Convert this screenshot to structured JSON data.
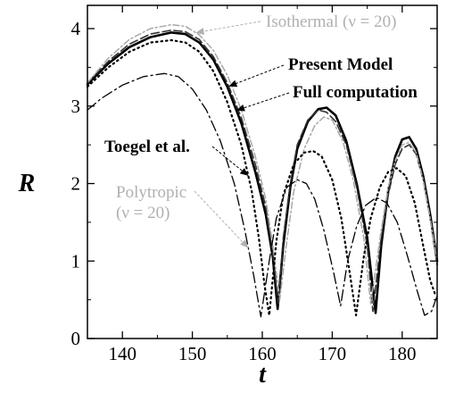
{
  "chart_data": {
    "type": "line",
    "xlabel": "t",
    "ylabel": "R",
    "xlim": [
      135,
      185
    ],
    "ylim": [
      0,
      4.3
    ],
    "xticks": [
      140,
      150,
      160,
      170,
      180
    ],
    "yticks": [
      0,
      1,
      2,
      3,
      4
    ],
    "grid": false,
    "series": [
      {
        "key": "full",
        "color": "#000000",
        "dash": "",
        "width": 2.6,
        "x": [
          135,
          138,
          141,
          144,
          147,
          149,
          151,
          153,
          155,
          157,
          159,
          160.5,
          161.5,
          162.2,
          163,
          164,
          165,
          166.5,
          168,
          169.2,
          170.5,
          172,
          173.5,
          175,
          176.2,
          177,
          178,
          179,
          180,
          181,
          182,
          183,
          184,
          185
        ],
        "y": [
          3.28,
          3.55,
          3.76,
          3.89,
          3.95,
          3.93,
          3.82,
          3.6,
          3.25,
          2.78,
          2.15,
          1.6,
          1.05,
          0.38,
          1.2,
          1.95,
          2.45,
          2.8,
          2.96,
          2.98,
          2.88,
          2.55,
          2.0,
          1.3,
          0.33,
          1.2,
          1.9,
          2.35,
          2.57,
          2.6,
          2.45,
          2.1,
          1.6,
          1.0
        ]
      },
      {
        "key": "present",
        "color": "#333333",
        "dash": "9 4",
        "width": 1.6,
        "x": [
          135,
          138,
          141,
          144,
          147,
          149,
          151,
          153,
          155,
          157,
          159,
          160.5,
          161.5,
          162.3,
          163,
          164,
          165,
          166.5,
          168,
          169.2,
          170.5,
          172,
          173.5,
          175,
          175.8,
          177,
          178,
          179,
          180,
          181,
          182,
          183,
          184,
          185
        ],
        "y": [
          3.3,
          3.58,
          3.8,
          3.93,
          3.98,
          3.96,
          3.86,
          3.64,
          3.3,
          2.85,
          2.25,
          1.7,
          1.1,
          0.45,
          1.3,
          2.0,
          2.5,
          2.82,
          2.95,
          2.92,
          2.8,
          2.5,
          1.95,
          1.2,
          0.35,
          1.3,
          1.85,
          2.25,
          2.45,
          2.5,
          2.38,
          2.05,
          1.55,
          0.95
        ]
      },
      {
        "key": "isothermal",
        "color": "#a8a8a8",
        "dash": "7 3 2 3",
        "width": 1.5,
        "x": [
          135,
          138,
          141,
          144,
          147,
          149,
          151,
          153,
          155,
          157,
          159,
          160.5,
          161.5,
          162.5,
          163.5,
          164.5,
          166,
          167.5,
          168.8,
          170,
          171.5,
          173,
          174.5,
          175.5,
          177,
          178,
          179,
          180,
          181,
          182,
          183,
          184,
          185
        ],
        "y": [
          3.3,
          3.62,
          3.86,
          4.0,
          4.05,
          4.03,
          3.92,
          3.72,
          3.4,
          2.95,
          2.35,
          1.8,
          1.2,
          0.5,
          1.25,
          1.9,
          2.45,
          2.75,
          2.86,
          2.82,
          2.55,
          2.05,
          1.3,
          0.45,
          1.4,
          1.95,
          2.3,
          2.5,
          2.53,
          2.4,
          2.05,
          1.55,
          1.0
        ]
      },
      {
        "key": "toegel",
        "color": "#000000",
        "dash": "1.5 4",
        "width": 2.2,
        "x": [
          135,
          138,
          141,
          144,
          147,
          149,
          151,
          153,
          155,
          157,
          158.5,
          159.5,
          160.3,
          161,
          162,
          163,
          164.5,
          166,
          167.3,
          168.5,
          170,
          171.3,
          172.5,
          173.4,
          174.5,
          175.5,
          176.8,
          178,
          179.2,
          180.5,
          181.8,
          183,
          184,
          184.8
        ],
        "y": [
          3.25,
          3.5,
          3.7,
          3.82,
          3.85,
          3.82,
          3.7,
          3.45,
          3.05,
          2.5,
          1.9,
          1.3,
          0.7,
          0.3,
          1.25,
          1.85,
          2.25,
          2.4,
          2.42,
          2.35,
          2.05,
          1.55,
          0.85,
          0.3,
          1.05,
          1.55,
          1.95,
          2.15,
          2.2,
          2.1,
          1.75,
          1.2,
          0.75,
          0.55
        ]
      },
      {
        "key": "polytropic",
        "color": "#000000",
        "dash": "12 4 2 4",
        "width": 1.3,
        "x": [
          135,
          137,
          140,
          143,
          146,
          148,
          150,
          152,
          154,
          156,
          157.5,
          158.8,
          159.8,
          161,
          162,
          163.5,
          165,
          166.3,
          167.5,
          168.8,
          170.2,
          171.2,
          172.2,
          173.5,
          174.8,
          176.3,
          177.8,
          179.3,
          180.8,
          182.2,
          183.2,
          184.2,
          185
        ],
        "y": [
          2.95,
          3.1,
          3.27,
          3.38,
          3.42,
          3.38,
          3.22,
          2.95,
          2.55,
          2.0,
          1.4,
          0.8,
          0.28,
          1.0,
          1.55,
          1.95,
          2.05,
          2.0,
          1.8,
          1.4,
          0.85,
          0.42,
          1.0,
          1.45,
          1.72,
          1.82,
          1.75,
          1.5,
          1.05,
          0.6,
          0.3,
          0.35,
          0.55
        ]
      }
    ],
    "annotations": [
      {
        "key": "isothermal",
        "text": "Isothermal (ν = 20)",
        "color": "gray"
      },
      {
        "key": "present",
        "text": "Present Model",
        "color": "black"
      },
      {
        "key": "full",
        "text": "Full computation",
        "color": "black"
      },
      {
        "key": "toegel",
        "text": "Toegel et al.",
        "color": "black"
      },
      {
        "key": "polytropic",
        "text": "Polytropic\n(ν = 20)",
        "color": "gray"
      }
    ]
  }
}
